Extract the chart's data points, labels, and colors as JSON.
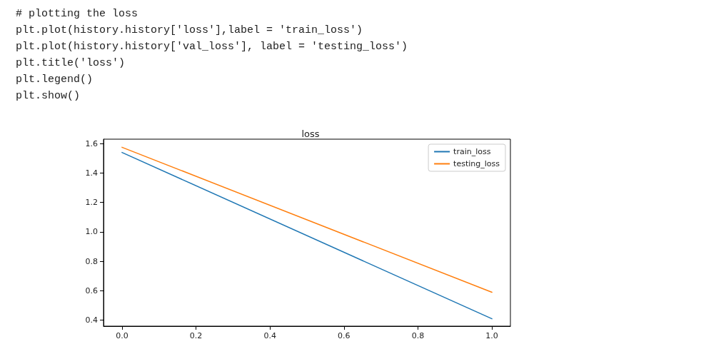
{
  "chart_data": {
    "type": "line",
    "title": "loss",
    "annotations": [
      "# plotting the loss",
      "plt.plot(history.history['loss'],label = 'train_loss')",
      "plt.plot(history.history['val_loss'], label = 'testing_loss')",
      "plt.title('loss')",
      "plt.legend()",
      "plt.show()"
    ],
    "x": [
      0,
      1
    ],
    "series": [
      {
        "name": "train_loss",
        "color": "#1f77b4",
        "values": [
          1.54,
          0.41
        ]
      },
      {
        "name": "testing_loss",
        "color": "#ff7f0e",
        "values": [
          1.575,
          0.59
        ]
      }
    ],
    "xlim": [
      -0.05,
      1.05
    ],
    "ylim": [
      0.36,
      1.63
    ],
    "xticks": [
      {
        "value": 0,
        "label": "0.0"
      },
      {
        "value": 0.2,
        "label": "0.2"
      },
      {
        "value": 0.4,
        "label": "0.4"
      },
      {
        "value": 0.6,
        "label": "0.6"
      },
      {
        "value": 0.8,
        "label": "0.8"
      },
      {
        "value": 1,
        "label": "1.0"
      }
    ],
    "yticks": [
      {
        "value": 0.4,
        "label": "0.4"
      },
      {
        "value": 0.6,
        "label": "0.6"
      },
      {
        "value": 0.8,
        "label": "0.8"
      },
      {
        "value": 1,
        "label": "1.0"
      },
      {
        "value": 1.2,
        "label": "1.2"
      },
      {
        "value": 1.4,
        "label": "1.4"
      },
      {
        "value": 1.6,
        "label": "1.6"
      }
    ],
    "grid": false,
    "legend": "top right",
    "marker": "none",
    "line_style": "solid"
  }
}
